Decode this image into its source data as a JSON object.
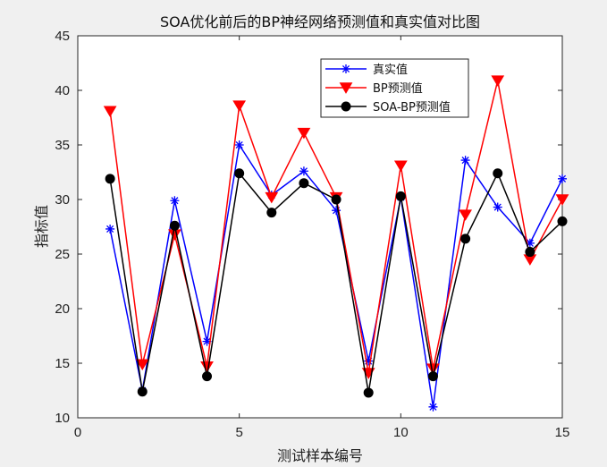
{
  "chart_data": {
    "type": "line",
    "title": "SOA优化前后的BP神经网络预测值和真实值对比图",
    "xlabel": "测试样本编号",
    "ylabel": "指标值",
    "xlim": [
      0,
      15
    ],
    "ylim": [
      10,
      45
    ],
    "xticks": [
      0,
      5,
      10,
      15
    ],
    "yticks": [
      10,
      15,
      20,
      25,
      30,
      35,
      40,
      45
    ],
    "grid": false,
    "legend_position": "top-right",
    "x": [
      1,
      2,
      3,
      4,
      5,
      6,
      7,
      8,
      9,
      10,
      11,
      12,
      13,
      14,
      15
    ],
    "series": [
      {
        "name": "真实值",
        "color": "#0000ff",
        "marker": "asterisk",
        "values": [
          27.3,
          12.5,
          29.9,
          17.0,
          35.0,
          30.4,
          32.6,
          29.0,
          15.2,
          30.2,
          11.0,
          33.6,
          29.3,
          26.0,
          31.9
        ]
      },
      {
        "name": "BP预测值",
        "color": "#ff0000",
        "marker": "triangle-down",
        "values": [
          38.1,
          14.9,
          26.8,
          14.7,
          38.6,
          30.2,
          36.1,
          30.2,
          14.1,
          33.1,
          14.5,
          28.6,
          40.9,
          24.5,
          30.0
        ]
      },
      {
        "name": "SOA-BP预测值",
        "color": "#000000",
        "marker": "circle",
        "values": [
          31.9,
          12.4,
          27.6,
          13.8,
          32.4,
          28.8,
          31.5,
          30.0,
          12.3,
          30.3,
          13.8,
          26.4,
          32.4,
          25.2,
          28.0
        ]
      }
    ]
  }
}
